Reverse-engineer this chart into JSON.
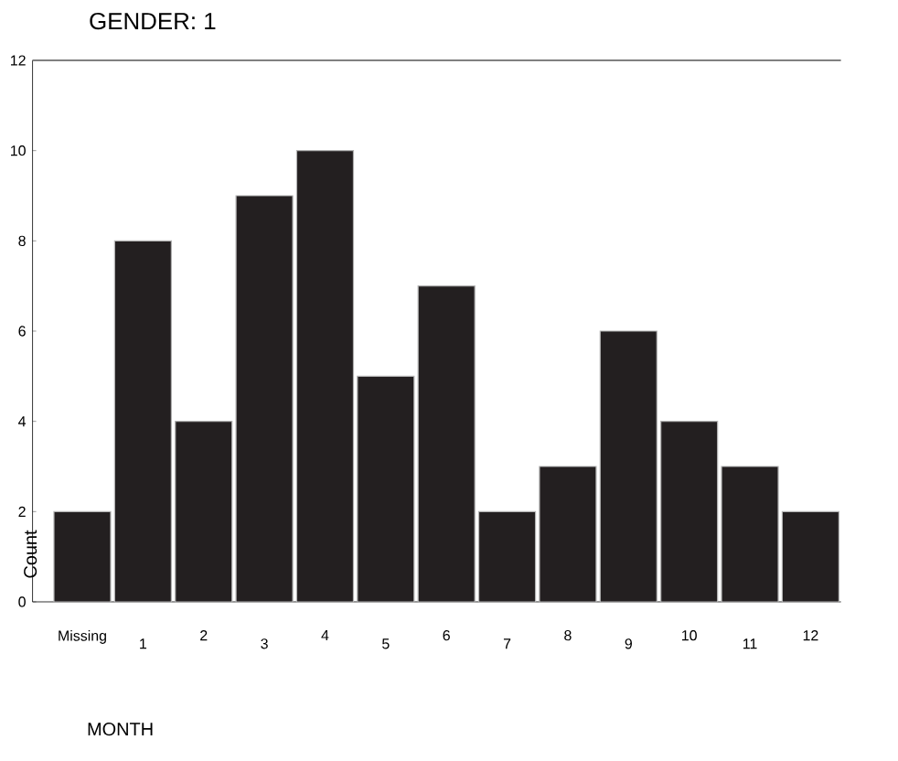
{
  "chart_data": {
    "type": "bar",
    "title": "GENDER:  1",
    "xlabel": "MONTH",
    "ylabel": "Count",
    "categories": [
      "Missing",
      "1",
      "2",
      "3",
      "4",
      "5",
      "6",
      "7",
      "8",
      "9",
      "10",
      "11",
      "12"
    ],
    "values": [
      2,
      8,
      4,
      9,
      10,
      5,
      7,
      2,
      3,
      6,
      4,
      3,
      2
    ],
    "color": "#231f20",
    "ylim": [
      0,
      12
    ],
    "yticks": [
      0,
      2,
      4,
      6,
      8,
      10,
      12
    ],
    "grid": false
  }
}
